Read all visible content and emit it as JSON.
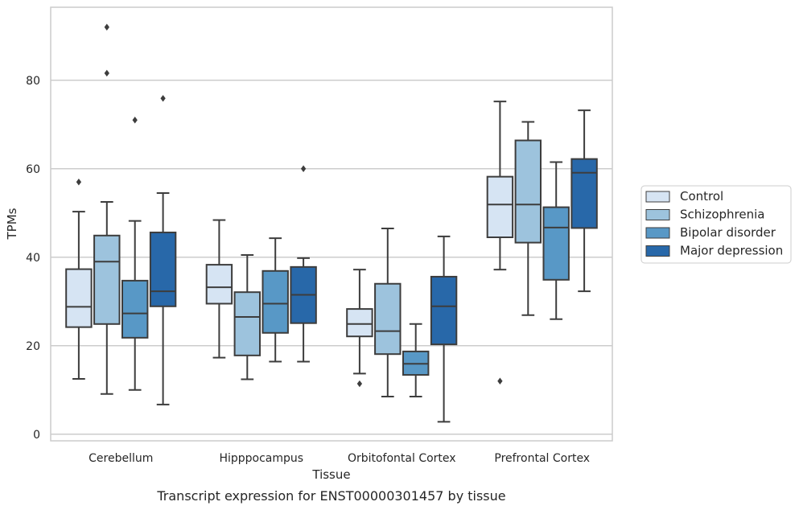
{
  "chart_data": {
    "type": "box",
    "title": "",
    "caption": "Transcript expression for ENST00000301457 by tissue",
    "xlabel": "Tissue",
    "ylabel": "TPMs",
    "ylim": [
      -1.5,
      96.5
    ],
    "yticks": [
      0,
      20,
      40,
      60,
      80
    ],
    "grid": "horizontal",
    "legend_position": "right",
    "categories": [
      "Cerebellum",
      "Hipppocampus",
      "Orbitofontal Cortex",
      "Prefrontal Cortex"
    ],
    "series": [
      {
        "name": "Control",
        "color": "#d6e4f3",
        "boxes": [
          {
            "whislo": 12.5,
            "q1": 24.2,
            "med": 28.8,
            "q3": 37.3,
            "whishi": 50.3,
            "fliers": [
              57.0
            ]
          },
          {
            "whislo": 17.3,
            "q1": 29.5,
            "med": 33.2,
            "q3": 38.3,
            "whishi": 48.4,
            "fliers": []
          },
          {
            "whislo": 13.7,
            "q1": 22.1,
            "med": 24.9,
            "q3": 28.3,
            "whishi": 37.2,
            "fliers": [
              11.4
            ]
          },
          {
            "whislo": 37.2,
            "q1": 44.5,
            "med": 51.9,
            "q3": 58.2,
            "whishi": 75.2,
            "fliers": [
              12.0
            ]
          }
        ]
      },
      {
        "name": "Schizophrenia",
        "color": "#9dc3dd",
        "boxes": [
          {
            "whislo": 9.1,
            "q1": 24.9,
            "med": 39.0,
            "q3": 44.9,
            "whishi": 52.5,
            "fliers": [
              81.6,
              92.0
            ]
          },
          {
            "whislo": 12.4,
            "q1": 17.8,
            "med": 26.5,
            "q3": 32.1,
            "whishi": 40.5,
            "fliers": []
          },
          {
            "whislo": 8.5,
            "q1": 18.1,
            "med": 23.3,
            "q3": 34.0,
            "whishi": 46.5,
            "fliers": []
          },
          {
            "whislo": 26.9,
            "q1": 43.3,
            "med": 51.9,
            "q3": 66.4,
            "whishi": 70.6,
            "fliers": []
          }
        ]
      },
      {
        "name": "Bipolar disorder",
        "color": "#5898c6",
        "boxes": [
          {
            "whislo": 10.0,
            "q1": 21.8,
            "med": 27.3,
            "q3": 34.7,
            "whishi": 48.2,
            "fliers": [
              71.0
            ]
          },
          {
            "whislo": 16.4,
            "q1": 22.9,
            "med": 29.5,
            "q3": 36.9,
            "whishi": 44.3,
            "fliers": []
          },
          {
            "whislo": 8.5,
            "q1": 13.4,
            "med": 15.9,
            "q3": 18.7,
            "whishi": 24.9,
            "fliers": []
          },
          {
            "whislo": 26.0,
            "q1": 34.9,
            "med": 46.7,
            "q3": 51.3,
            "whishi": 61.5,
            "fliers": []
          }
        ]
      },
      {
        "name": "Major depression",
        "color": "#2868a9",
        "boxes": [
          {
            "whislo": 6.7,
            "q1": 28.9,
            "med": 32.3,
            "q3": 45.6,
            "whishi": 54.5,
            "fliers": [
              75.9
            ]
          },
          {
            "whislo": 16.4,
            "q1": 25.1,
            "med": 31.5,
            "q3": 37.8,
            "whishi": 39.8,
            "fliers": [
              60.0
            ]
          },
          {
            "whislo": 2.8,
            "q1": 20.3,
            "med": 28.9,
            "q3": 35.6,
            "whishi": 44.7,
            "fliers": []
          },
          {
            "whislo": 32.3,
            "q1": 46.6,
            "med": 59.1,
            "q3": 62.2,
            "whishi": 73.2,
            "fliers": []
          }
        ]
      }
    ]
  }
}
